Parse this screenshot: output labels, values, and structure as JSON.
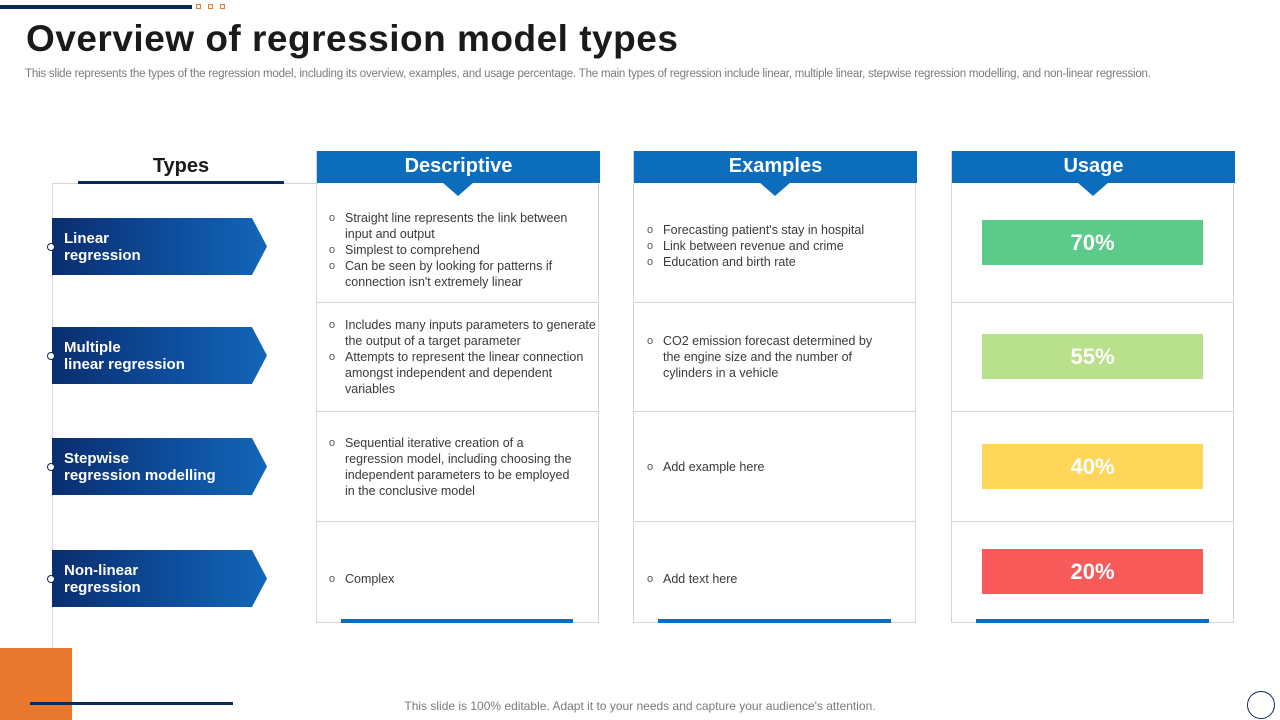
{
  "title": "Overview of regression model types",
  "subtitle": "This slide represents the types of the regression model, including its overview, examples, and usage percentage. The main types of regression include linear, multiple linear, stepwise regression modelling, and non-linear regression.",
  "headers": {
    "types": "Types",
    "descriptive": "Descriptive",
    "examples": "Examples",
    "usage": "Usage"
  },
  "rows": [
    {
      "type": [
        "Linear",
        "regression"
      ],
      "descriptive": [
        "Straight line represents the link between input and output",
        "Simplest to comprehend",
        "Can be seen by looking for patterns if connection isn't extremely linear"
      ],
      "examples": [
        "Forecasting patient's stay in hospital",
        "Link between revenue and crime",
        "Education and birth rate"
      ],
      "usage": "70%",
      "usage_color": "#5ccb8a"
    },
    {
      "type": [
        "Multiple",
        "linear regression"
      ],
      "descriptive": [
        "Includes many inputs parameters to generate the output of a target parameter",
        "Attempts to represent the linear connection amongst independent and dependent variables"
      ],
      "examples": [
        "CO2 emission forecast determined by the engine size and the number of cylinders in a vehicle"
      ],
      "usage": "55%",
      "usage_color": "#b9e08a"
    },
    {
      "type": [
        "Stepwise",
        "regression modelling"
      ],
      "descriptive": [
        "Sequential iterative creation of a regression model, including choosing the independent parameters to be employed in the conclusive model"
      ],
      "examples": [
        "Add example here"
      ],
      "usage": "40%",
      "usage_color": "#fdd65a"
    },
    {
      "type": [
        "Non-linear",
        "regression"
      ],
      "descriptive": [
        "Complex"
      ],
      "examples": [
        "Add text here"
      ],
      "usage": "20%",
      "usage_color": "#f85a5a"
    }
  ],
  "footer": "This slide is 100% editable. Adapt it to your needs and capture your audience's attention.",
  "colors": {
    "header_blue": "#0c6dbd",
    "navy": "#0b2a5a",
    "accent_orange": "#e8782e"
  }
}
